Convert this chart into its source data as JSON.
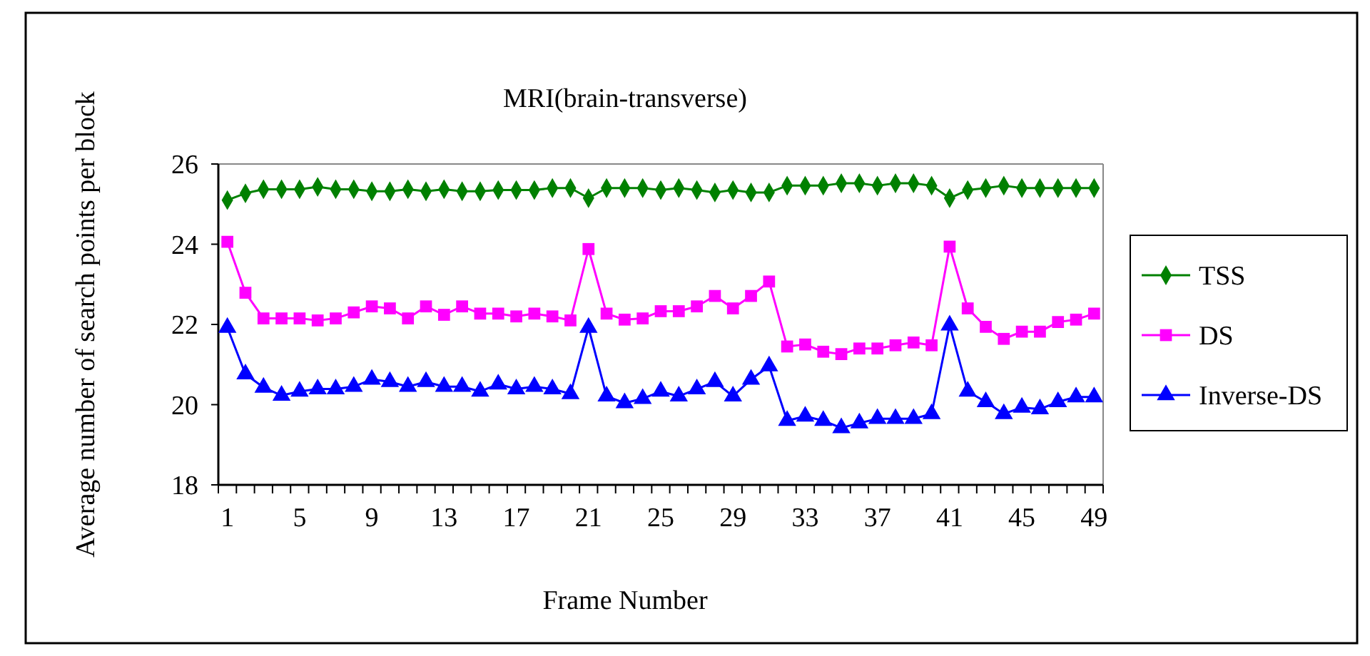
{
  "chart_data": {
    "type": "line",
    "title": "MRI(brain-transverse)",
    "xlabel": "Frame Number",
    "ylabel": "Average number of search points per block",
    "categories": [
      "1",
      null,
      null,
      null,
      "5",
      null,
      null,
      null,
      "9",
      null,
      null,
      null,
      "13",
      null,
      null,
      null,
      "17",
      null,
      null,
      null,
      "21",
      null,
      null,
      null,
      "25",
      null,
      null,
      null,
      "29",
      null,
      null,
      null,
      "33",
      null,
      null,
      null,
      "37",
      null,
      null,
      null,
      "41",
      null,
      null,
      null,
      "45",
      null,
      null,
      null,
      "49"
    ],
    "ylim": [
      18,
      26
    ],
    "yticks": [
      18,
      20,
      22,
      24,
      26
    ],
    "grid": false,
    "legend": "right",
    "series": [
      {
        "name": "TSS",
        "color": "#008000",
        "marker": "diamond",
        "values": [
          25.1,
          25.27,
          25.37,
          25.37,
          25.37,
          25.43,
          25.37,
          25.37,
          25.32,
          25.32,
          25.37,
          25.32,
          25.37,
          25.32,
          25.32,
          25.35,
          25.35,
          25.35,
          25.4,
          25.4,
          25.15,
          25.4,
          25.4,
          25.4,
          25.35,
          25.4,
          25.35,
          25.29,
          25.35,
          25.29,
          25.29,
          25.46,
          25.46,
          25.46,
          25.52,
          25.52,
          25.46,
          25.52,
          25.52,
          25.46,
          25.15,
          25.35,
          25.4,
          25.46,
          25.4,
          25.4,
          25.4,
          25.4,
          25.4
        ]
      },
      {
        "name": "DS",
        "color": "#ff00ff",
        "marker": "square",
        "values": [
          24.06,
          22.79,
          22.15,
          22.15,
          22.15,
          22.1,
          22.15,
          22.3,
          22.45,
          22.4,
          22.15,
          22.45,
          22.24,
          22.45,
          22.27,
          22.27,
          22.2,
          22.27,
          22.2,
          22.1,
          23.88,
          22.27,
          22.12,
          22.15,
          22.33,
          22.33,
          22.45,
          22.71,
          22.4,
          22.71,
          23.07,
          21.45,
          21.5,
          21.32,
          21.26,
          21.4,
          21.4,
          21.48,
          21.55,
          21.48,
          23.94,
          22.4,
          21.94,
          21.64,
          21.82,
          21.82,
          22.06,
          22.12,
          22.27
        ]
      },
      {
        "name": "Inverse-DS",
        "color": "#0000ff",
        "marker": "triangle",
        "values": [
          21.92,
          20.76,
          20.43,
          20.23,
          20.33,
          20.39,
          20.39,
          20.45,
          20.63,
          20.57,
          20.45,
          20.57,
          20.45,
          20.45,
          20.33,
          20.51,
          20.39,
          20.45,
          20.39,
          20.27,
          21.92,
          20.21,
          20.04,
          20.15,
          20.33,
          20.21,
          20.39,
          20.57,
          20.21,
          20.63,
          20.96,
          19.6,
          19.71,
          19.6,
          19.42,
          19.54,
          19.65,
          19.65,
          19.65,
          19.77,
          21.98,
          20.33,
          20.07,
          19.77,
          19.93,
          19.89,
          20.07,
          20.19,
          20.19
        ]
      }
    ]
  }
}
